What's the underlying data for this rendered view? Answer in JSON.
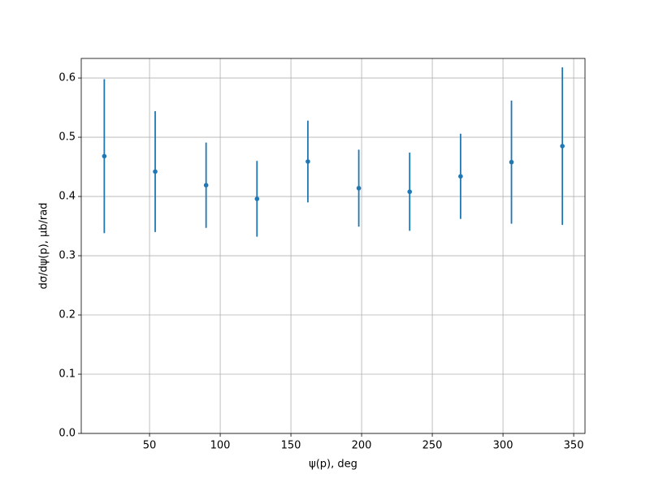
{
  "chart_data": {
    "type": "errorbar",
    "xlabel": "ψ(p), deg",
    "ylabel": "dσ/dψ(p), μb/rad",
    "x": [
      18,
      54,
      90,
      126,
      162,
      198,
      234,
      270,
      306,
      342
    ],
    "series": [
      {
        "color": "#1f77b4",
        "values": [
          0.468,
          0.442,
          0.419,
          0.396,
          0.459,
          0.414,
          0.408,
          0.434,
          0.458,
          0.485
        ],
        "errors": [
          0.13,
          0.102,
          0.072,
          0.064,
          0.069,
          0.065,
          0.066,
          0.072,
          0.104,
          0.133
        ]
      }
    ],
    "xlim": [
      1.7,
      358
    ],
    "ylim": [
      0,
      0.633
    ],
    "xticks": [
      50,
      100,
      150,
      200,
      250,
      300,
      350
    ],
    "yticks": [
      {
        "value": 0,
        "label": "0.0"
      },
      0.1,
      0.2,
      0.3,
      0.4,
      0.5,
      0.6
    ],
    "grid": true
  }
}
